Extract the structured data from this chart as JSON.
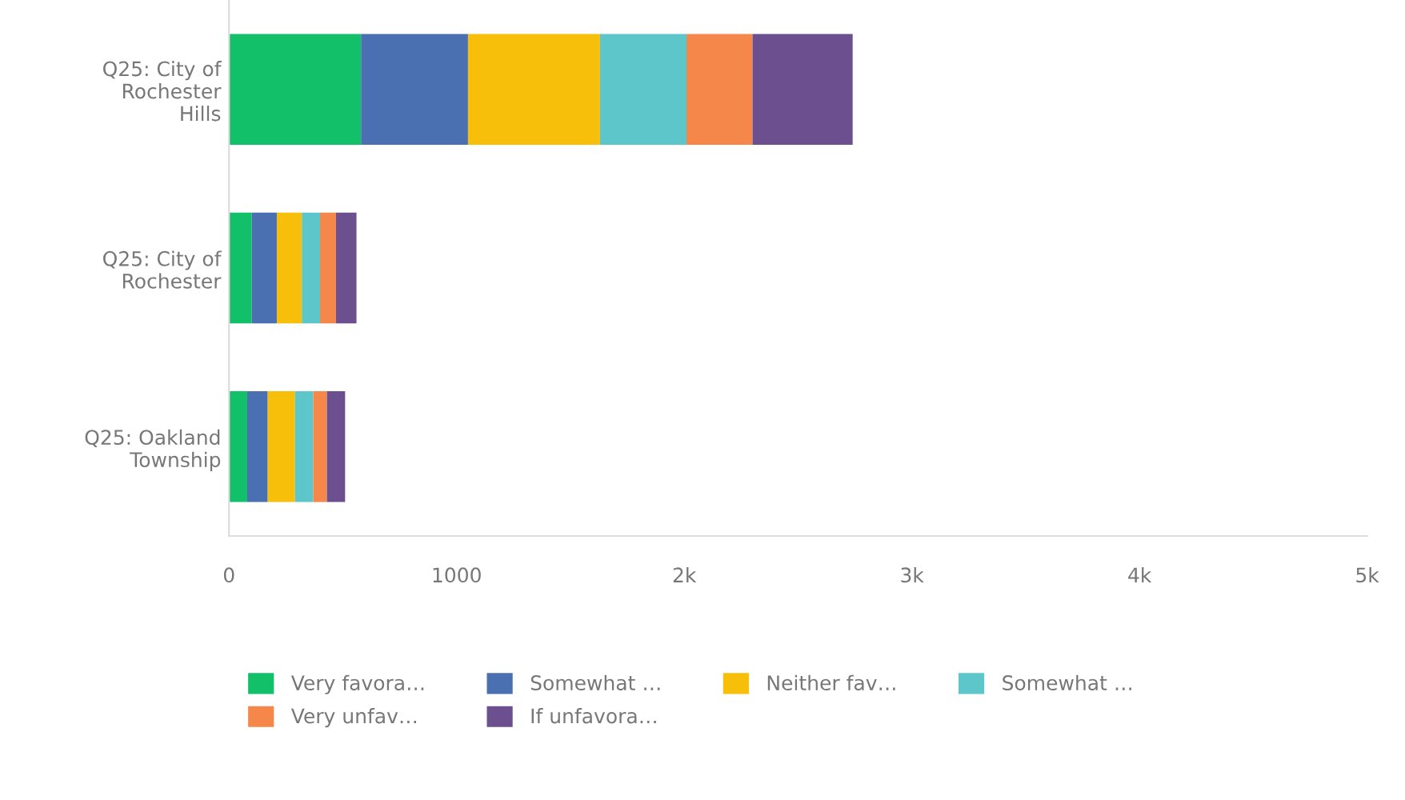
{
  "chart_data": {
    "type": "bar",
    "orientation": "horizontal",
    "stacked": true,
    "categories": [
      "Q25: City of\nRochester\nHills",
      "Q25: City of\nRochester",
      "Q25: Oakland\nTownship"
    ],
    "series": [
      {
        "name": "Very favora…",
        "color": "#12c06a",
        "values": [
          580,
          100,
          80
        ]
      },
      {
        "name": "Somewhat …",
        "color": "#4a70b2",
        "values": [
          470,
          110,
          90
        ]
      },
      {
        "name": "Neither fav…",
        "color": "#f8bf0a",
        "values": [
          580,
          110,
          120
        ]
      },
      {
        "name": "Somewhat …",
        "color": "#5cc6ca",
        "values": [
          380,
          80,
          80
        ]
      },
      {
        "name": "Very unfav…",
        "color": "#f5874a",
        "values": [
          290,
          70,
          60
        ]
      },
      {
        "name": "If unfavora…",
        "color": "#6b4f8e",
        "values": [
          440,
          90,
          80
        ]
      }
    ],
    "xlim": [
      0,
      5000
    ],
    "xticks": [
      0,
      1000,
      {
        "value": 2000,
        "label": "2k"
      },
      {
        "value": 3000,
        "label": "3k"
      },
      {
        "value": 4000,
        "label": "4k"
      },
      {
        "value": 5000,
        "label": "5k"
      }
    ],
    "grid": false,
    "legend": "bottom"
  }
}
